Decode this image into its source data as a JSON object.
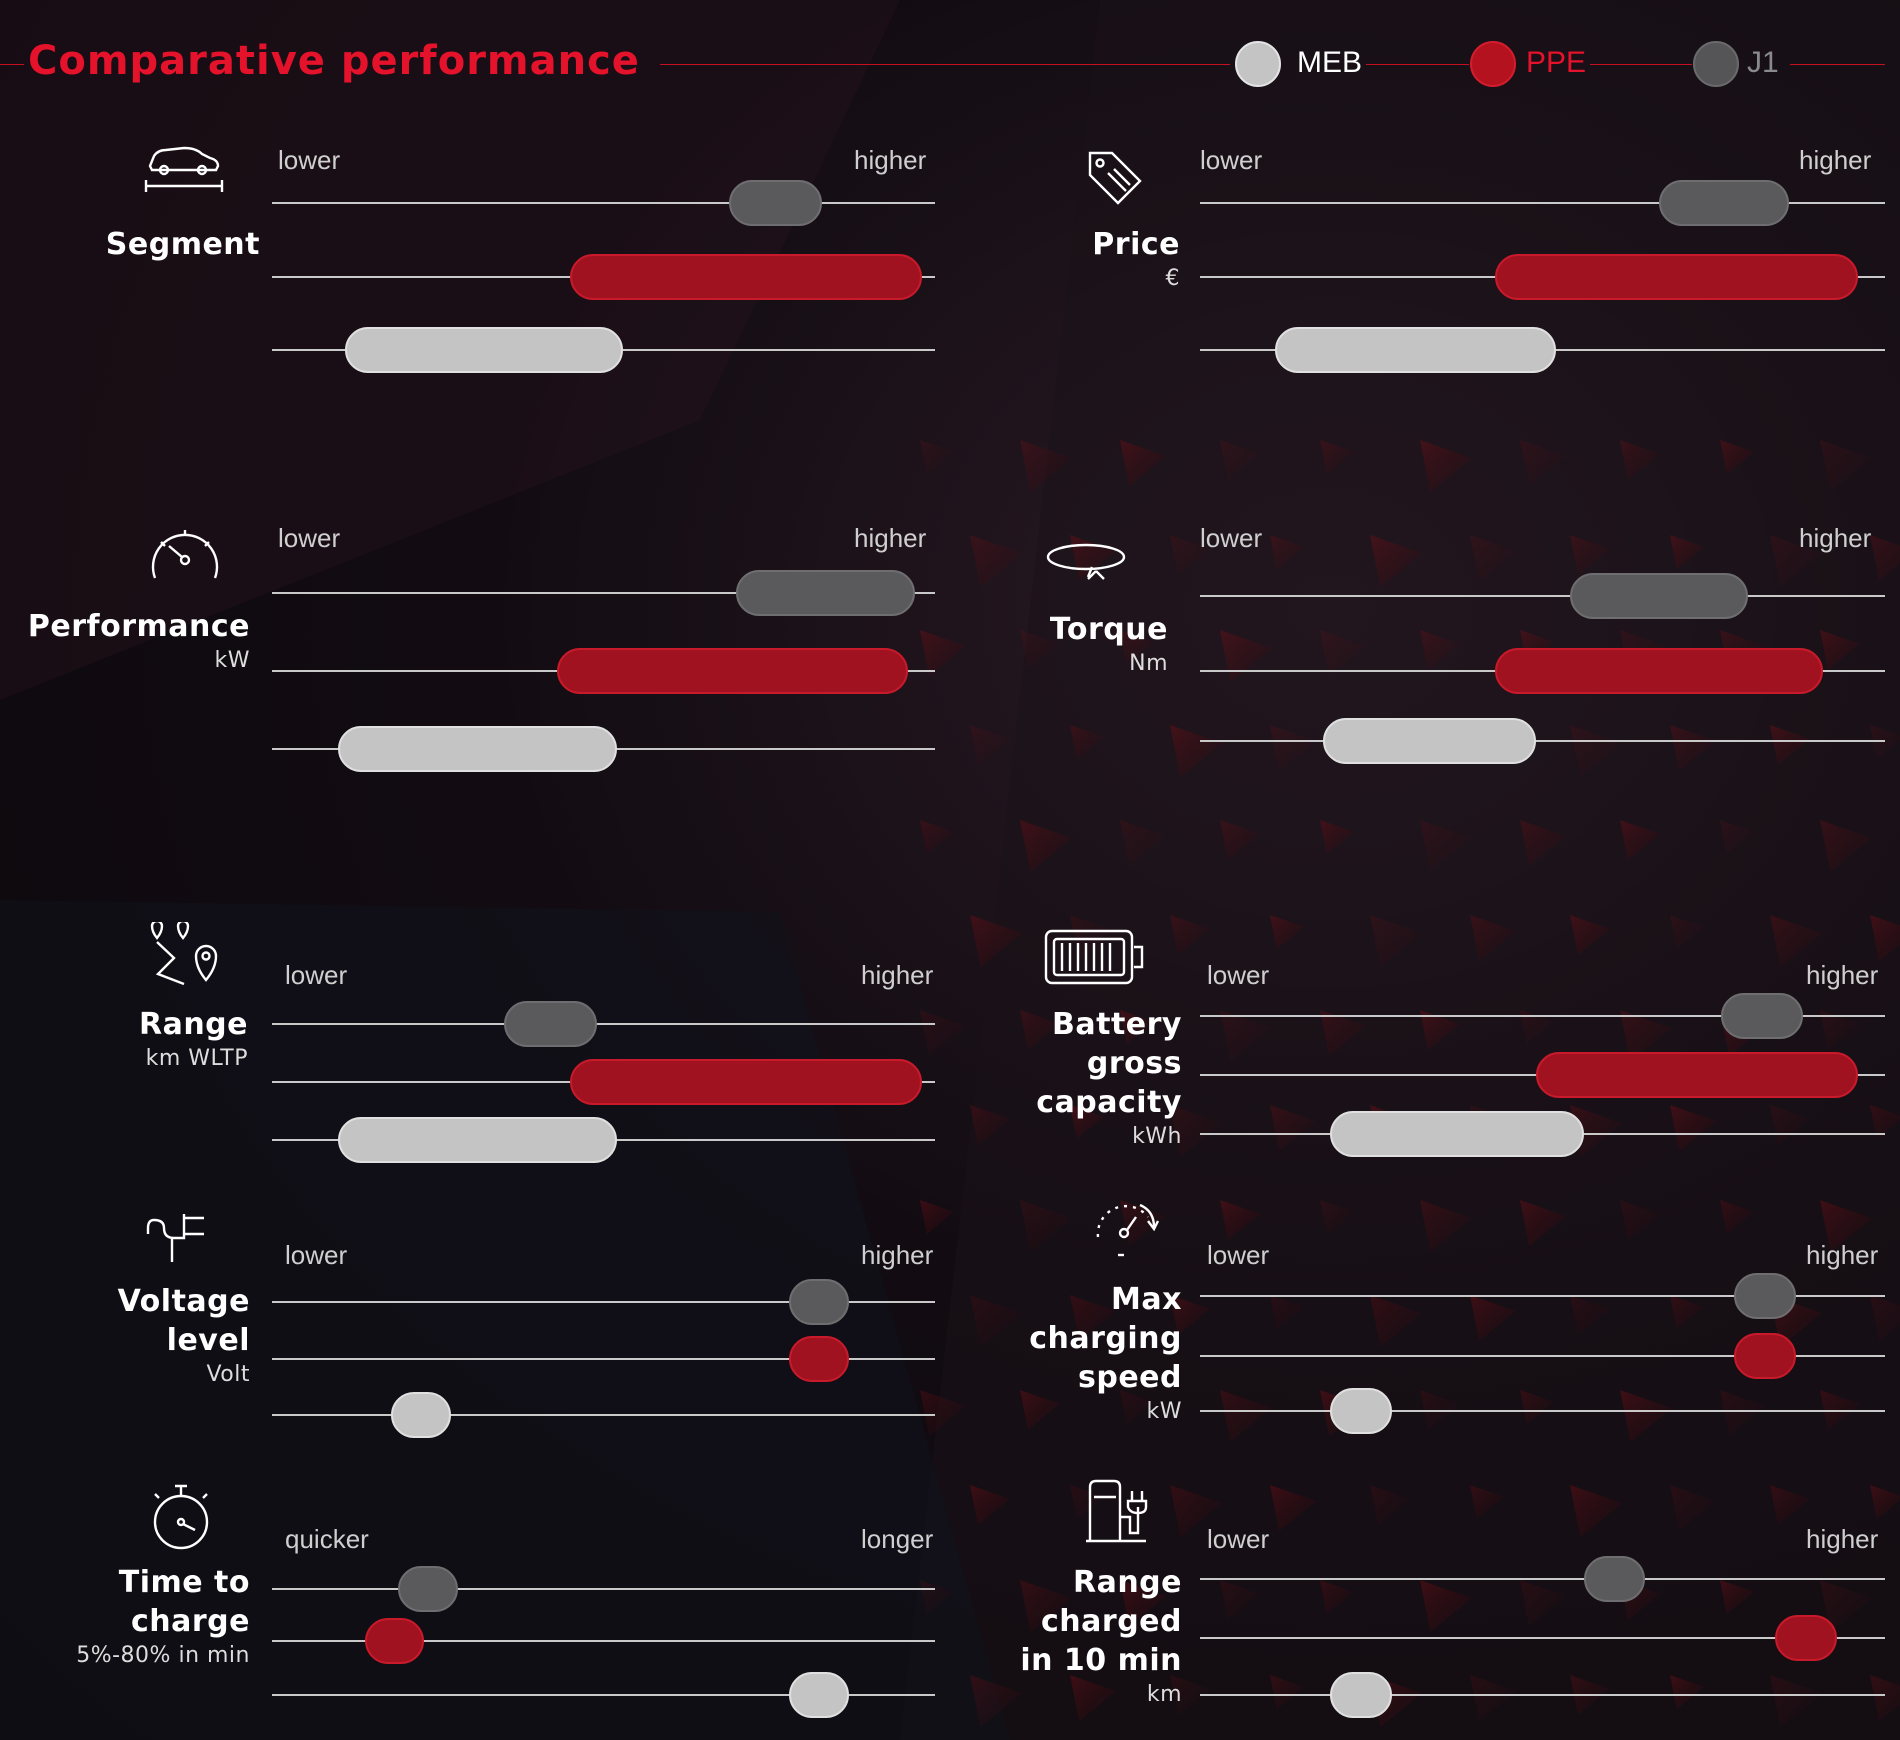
{
  "title": "Comparative performance",
  "legend": [
    {
      "key": "meb",
      "label": "MEB",
      "color": "#c4c4c4"
    },
    {
      "key": "ppe",
      "label": "PPE",
      "color": "#c81a2a"
    },
    {
      "key": "j1",
      "label": "J1",
      "color": "#5a5a5c"
    }
  ],
  "chart_data": [
    {
      "type": "range",
      "name": "Segment",
      "unit": "",
      "icon": "car-icon",
      "low": "lower",
      "high": "higher",
      "series": [
        {
          "key": "j1",
          "range": [
            0.69,
            0.83
          ]
        },
        {
          "key": "ppe",
          "range": [
            0.45,
            0.98
          ]
        },
        {
          "key": "meb",
          "range": [
            0.11,
            0.53
          ]
        }
      ]
    },
    {
      "type": "range",
      "name": "Price",
      "unit": "€",
      "icon": "price-tag-icon",
      "low": "lower",
      "high": "higher",
      "series": [
        {
          "key": "j1",
          "range": [
            0.67,
            0.86
          ]
        },
        {
          "key": "ppe",
          "range": [
            0.43,
            0.96
          ]
        },
        {
          "key": "meb",
          "range": [
            0.11,
            0.52
          ]
        }
      ]
    },
    {
      "type": "range",
      "name": "Performance",
      "unit": "kW",
      "icon": "speedometer-icon",
      "low": "lower",
      "high": "higher",
      "series": [
        {
          "key": "j1",
          "range": [
            0.7,
            0.97
          ]
        },
        {
          "key": "ppe",
          "range": [
            0.43,
            0.96
          ]
        },
        {
          "key": "meb",
          "range": [
            0.1,
            0.52
          ]
        }
      ]
    },
    {
      "type": "range",
      "name": "Torque",
      "unit": "Nm",
      "icon": "torque-icon",
      "low": "lower",
      "high": "higher",
      "series": [
        {
          "key": "j1",
          "range": [
            0.54,
            0.8
          ]
        },
        {
          "key": "ppe",
          "range": [
            0.43,
            0.91
          ]
        },
        {
          "key": "meb",
          "range": [
            0.18,
            0.49
          ]
        }
      ]
    },
    {
      "type": "range",
      "name": "Range",
      "unit": "km WLTP",
      "icon": "route-icon",
      "low": "lower",
      "high": "higher",
      "series": [
        {
          "key": "j1",
          "range": [
            0.35,
            0.49
          ]
        },
        {
          "key": "ppe",
          "range": [
            0.45,
            0.98
          ]
        },
        {
          "key": "meb",
          "range": [
            0.1,
            0.52
          ]
        }
      ]
    },
    {
      "type": "range",
      "name": "Battery\ngross\ncapacity",
      "unit": "kWh",
      "icon": "battery-icon",
      "low": "lower",
      "high": "higher",
      "series": [
        {
          "key": "j1",
          "range": [
            0.76,
            0.88
          ]
        },
        {
          "key": "ppe",
          "range": [
            0.49,
            0.96
          ]
        },
        {
          "key": "meb",
          "range": [
            0.19,
            0.56
          ]
        }
      ]
    },
    {
      "type": "range",
      "name": "Voltage\nlevel",
      "unit": "Volt",
      "icon": "plug-icon",
      "low": "lower",
      "high": "higher",
      "series": [
        {
          "key": "j1",
          "range": [
            0.78,
            0.87
          ]
        },
        {
          "key": "ppe",
          "range": [
            0.78,
            0.87
          ]
        },
        {
          "key": "meb",
          "range": [
            0.18,
            0.27
          ]
        }
      ]
    },
    {
      "type": "range",
      "name": "Max\ncharging\nspeed",
      "unit": "kW",
      "icon": "charging-gauge-icon",
      "low": "lower",
      "high": "higher",
      "series": [
        {
          "key": "j1",
          "range": [
            0.78,
            0.87
          ]
        },
        {
          "key": "ppe",
          "range": [
            0.78,
            0.87
          ]
        },
        {
          "key": "meb",
          "range": [
            0.19,
            0.28
          ]
        }
      ]
    },
    {
      "type": "range",
      "name": "Time to\ncharge",
      "unit": "5%-80% in min",
      "icon": "stopwatch-icon",
      "low": "quicker",
      "high": "longer",
      "series": [
        {
          "key": "j1",
          "range": [
            0.19,
            0.28
          ]
        },
        {
          "key": "ppe",
          "range": [
            0.14,
            0.23
          ]
        },
        {
          "key": "meb",
          "range": [
            0.78,
            0.87
          ]
        }
      ]
    },
    {
      "type": "range",
      "name": "Range\ncharged\nin 10 min",
      "unit": "km",
      "icon": "charging-station-icon",
      "low": "lower",
      "high": "higher",
      "series": [
        {
          "key": "j1",
          "range": [
            0.56,
            0.65
          ]
        },
        {
          "key": "ppe",
          "range": [
            0.84,
            0.93
          ]
        },
        {
          "key": "meb",
          "range": [
            0.19,
            0.28
          ]
        }
      ]
    }
  ]
}
